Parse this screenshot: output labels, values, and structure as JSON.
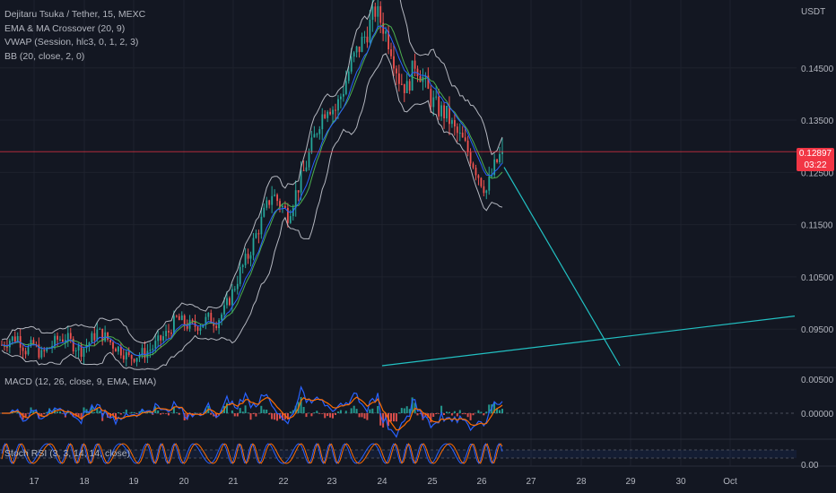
{
  "header": {
    "symbol_line": "Dejitaru Tsuka / Tether, 15, MEXC",
    "indicators": [
      "EMA & MA Crossover (20, 9)",
      "VWAP (Session, hlc3, 0, 1, 2, 3)",
      "BB (20, close, 2, 0)"
    ]
  },
  "price_axis": {
    "currency": "USDT",
    "ticks": [
      "0.14500",
      "0.13500",
      "0.12500",
      "0.11500",
      "0.10500",
      "0.09500"
    ],
    "last_price": "0.12897",
    "countdown": "03:22"
  },
  "macd": {
    "label": "MACD (12, 26, close, 9, EMA, EMA)",
    "ticks": [
      "0.00500",
      "0.00000"
    ]
  },
  "stoch": {
    "label": "Stoch RSI (3, 3, 14, 14, close)",
    "ticks": [
      "0.00"
    ]
  },
  "time_axis": {
    "labels": [
      "17",
      "18",
      "19",
      "20",
      "21",
      "22",
      "23",
      "24",
      "25",
      "26",
      "27",
      "28",
      "29",
      "30",
      "Oct"
    ]
  },
  "colors": {
    "background": "#131722",
    "up": "#26a69a",
    "down": "#ef5350",
    "bollinger": "#d1d4dc",
    "ema": "#4caf50",
    "vwap": "#2962ff",
    "trendline": "#22c1c3",
    "price_line": "#f23645",
    "macd_line": "#2962ff",
    "signal_line": "#ff6d00",
    "stoch_k": "#2962ff",
    "stoch_d": "#ff6d00"
  },
  "chart_data": {
    "type": "candlestick",
    "title": "Dejitaru Tsuka / Tether, 15, MEXC",
    "ylabel": "USDT",
    "ylim": [
      0.088,
      0.158
    ],
    "x": [
      "17",
      "18",
      "19",
      "20",
      "21",
      "22",
      "23",
      "24",
      "25",
      "26"
    ],
    "close_path": [
      0.092,
      0.093,
      0.0935,
      0.091,
      0.092,
      0.09,
      0.0915,
      0.093,
      0.0935,
      0.092,
      0.091,
      0.0925,
      0.0945,
      0.0935,
      0.092,
      0.091,
      0.0895,
      0.09,
      0.0905,
      0.0915,
      0.093,
      0.0945,
      0.097,
      0.096,
      0.0955,
      0.096,
      0.097,
      0.0965,
      0.0985,
      0.102,
      0.106,
      0.109,
      0.113,
      0.117,
      0.121,
      0.119,
      0.117,
      0.121,
      0.125,
      0.13,
      0.135,
      0.138,
      0.137,
      0.141,
      0.146,
      0.149,
      0.152,
      0.156,
      0.153,
      0.149,
      0.143,
      0.141,
      0.146,
      0.143,
      0.139,
      0.137,
      0.136,
      0.133,
      0.131,
      0.128,
      0.1245,
      0.1215,
      0.126,
      0.129
    ],
    "last": 0.12897,
    "trendlines": [
      {
        "from": [
          "26",
          0.126
        ],
        "to": [
          "29",
          0.088
        ]
      },
      {
        "from": [
          "24",
          0.088
        ],
        "to": [
          "Oct",
          0.0975
        ]
      }
    ]
  }
}
